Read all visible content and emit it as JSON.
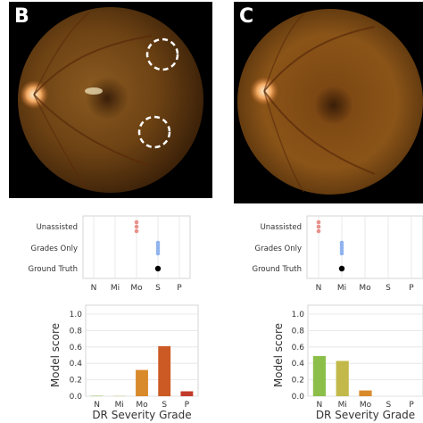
{
  "panels": [
    {
      "letter": "B",
      "dotplot": {
        "rows": [
          "Unassisted",
          "Grades Only",
          "Ground Truth"
        ],
        "categories": [
          "N",
          "Mi",
          "Mo",
          "S",
          "P"
        ],
        "unassisted_grade": "Mo",
        "grades_only_grade": "S",
        "ground_truth_grade": "S"
      }
    },
    {
      "letter": "C",
      "dotplot": {
        "rows": [
          "Unassisted",
          "Grades Only",
          "Ground Truth"
        ],
        "categories": [
          "N",
          "Mi",
          "Mo",
          "S",
          "P"
        ],
        "unassisted_grade": "N",
        "grades_only_grade": "Mi",
        "ground_truth_grade": "Mi"
      }
    }
  ],
  "chart_data": [
    {
      "type": "bar",
      "panel": "B",
      "categories": [
        "N",
        "Mi",
        "Mo",
        "S",
        "P"
      ],
      "values": [
        0.005,
        0.003,
        0.32,
        0.61,
        0.06
      ],
      "ylabel": "Model score",
      "xlabel": "DR Severity Grade",
      "ylim": [
        0,
        1.0
      ],
      "yticks": [
        "0.0",
        "0.2",
        "0.4",
        "0.6",
        "0.8",
        "1.0"
      ],
      "bar_colors": [
        "#8bbf4a",
        "#c2b94a",
        "#d98a2b",
        "#cc5a24",
        "#c23a2a"
      ]
    },
    {
      "type": "bar",
      "panel": "C",
      "categories": [
        "N",
        "Mi",
        "Mo",
        "S",
        "P"
      ],
      "values": [
        0.49,
        0.43,
        0.07,
        0.0,
        0.0
      ],
      "ylabel": "Model score",
      "xlabel": "DR Severity Grade",
      "ylim": [
        0,
        1.0
      ],
      "yticks": [
        "0.0",
        "0.2",
        "0.4",
        "0.6",
        "0.8",
        "1.0"
      ],
      "bar_colors": [
        "#8bbf4a",
        "#c2b94a",
        "#d98a2b",
        "#cc5a24",
        "#c23a2a"
      ]
    }
  ],
  "colors": {
    "unassisted_marker": "#e8908a",
    "grades_only_marker": "#8fb3ee",
    "ground_truth_marker": "#000000",
    "grid": "#e3e3e3",
    "axis_text": "#333333"
  }
}
